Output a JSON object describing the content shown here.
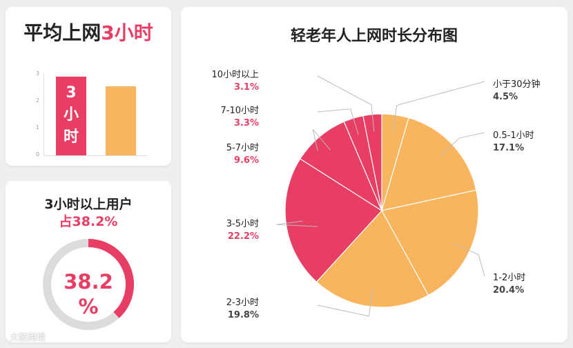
{
  "avg_card": {
    "title_prefix": "平均上网",
    "title_accent": "3小时",
    "ticks": [
      "3",
      "2",
      "1",
      "0"
    ],
    "bar_label_lines": [
      "3",
      "小",
      "时"
    ],
    "values": [
      3.0,
      2.65
    ],
    "colors": [
      "#e83e64",
      "#f8b55d"
    ]
  },
  "share_card": {
    "title_line1": "3小时以上用户",
    "title_line2": "占38.2%",
    "ring_label_top": "38.2",
    "ring_label_bottom": "%",
    "value_percent": 38.2,
    "accent": "#e83e64",
    "track": "#dcdcdc"
  },
  "chart_data": {
    "type": "pie",
    "title": "轻老年人上网时长分布图",
    "categories": [
      "小于30分钟",
      "0.5-1小时",
      "1-2小时",
      "2-3小时",
      "3-5小时",
      "5-7小时",
      "7-10小时",
      "10小时以上"
    ],
    "values": [
      4.5,
      17.1,
      20.4,
      19.8,
      22.2,
      9.6,
      3.3,
      3.1
    ],
    "labels": [
      "4.5%",
      "17.1%",
      "20.4%",
      "19.8%",
      "22.2%",
      "9.6%",
      "3.3%",
      "3.1%"
    ],
    "colors": [
      "#f8b55d",
      "#f8b55d",
      "#f8b55d",
      "#f8b55d",
      "#e83e64",
      "#e83e64",
      "#e83e64",
      "#e83e64"
    ],
    "label_colors": [
      "#444444",
      "#444444",
      "#444444",
      "#444444",
      "#e83e64",
      "#e83e64",
      "#e83e64",
      "#e83e64"
    ]
  },
  "watermark": "大鼓跨境"
}
